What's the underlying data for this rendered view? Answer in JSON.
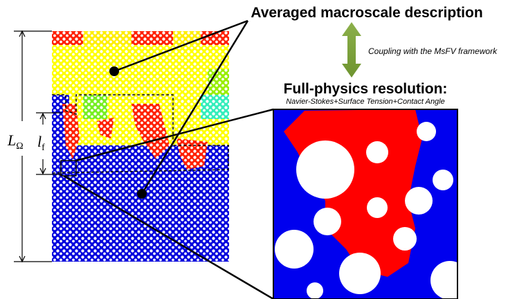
{
  "header": {
    "title": "Averaged macroscale description"
  },
  "coupling": {
    "label": "Coupling with the MsFV framework"
  },
  "zoom": {
    "title": "Full-physics resolution:",
    "subtitle": "Navier-Stokes+Surface Tension+Contact Angle"
  },
  "dimensions": {
    "domain": {
      "symbol": "L",
      "subscript": "Ω"
    },
    "front": {
      "symbol": "l",
      "subscript": "f"
    }
  }
}
